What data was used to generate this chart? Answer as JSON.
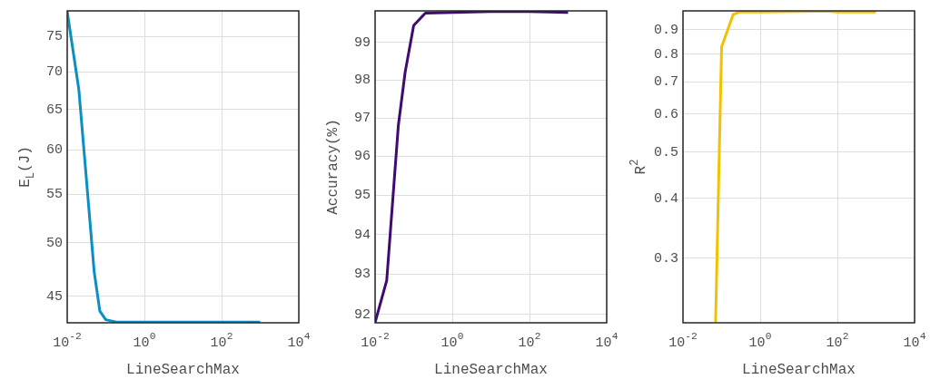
{
  "chart_data": [
    {
      "type": "line",
      "xlabel": "LineSearchMax",
      "ylabel": "E$_{L}$(J)",
      "log": "xy",
      "grid": true,
      "color": "#0a8fc4",
      "x": [
        0.01,
        0.02,
        0.03,
        0.05,
        0.07,
        0.1,
        0.2,
        1,
        10,
        100,
        1000
      ],
      "values": [
        78.8,
        67.6,
        57.7,
        47.2,
        43.7,
        42.96,
        42.75,
        42.75,
        42.75,
        42.75,
        42.75
      ],
      "xlim": [
        0.01,
        10000
      ],
      "xticks": [
        {
          "value": 0.01,
          "label": "10$^{-2}$"
        },
        {
          "value": 1,
          "label": "10$^{0}$"
        },
        {
          "value": 100,
          "label": "10$^{2}$"
        },
        {
          "value": 10000,
          "label": "10$^{4}$"
        }
      ],
      "ylim": [
        42.7,
        78.9
      ],
      "yticks": [
        45,
        50,
        55,
        60,
        65,
        70,
        75
      ]
    },
    {
      "type": "line",
      "xlabel": "LineSearchMax",
      "ylabel": "Accuracy(%)",
      "log": "xy",
      "grid": true,
      "color": "#3f0a72",
      "x": [
        0.01,
        0.02,
        0.04,
        0.06,
        0.1,
        0.2,
        1,
        10,
        100,
        1000
      ],
      "values": [
        91.8,
        92.84,
        96.8,
        98.2,
        99.45,
        99.78,
        99.8,
        99.82,
        99.82,
        99.8
      ],
      "xlim": [
        0.01,
        10000
      ],
      "xticks": [
        {
          "value": 0.01,
          "label": "10$^{-2}$"
        },
        {
          "value": 1,
          "label": "10$^{0}$"
        },
        {
          "value": 100,
          "label": "10$^{2}$"
        },
        {
          "value": 10000,
          "label": "10$^{4}$"
        }
      ],
      "ylim": [
        91.79,
        99.84
      ],
      "yticks": [
        92,
        93,
        94,
        95,
        96,
        97,
        98,
        99
      ]
    },
    {
      "type": "line",
      "xlabel": "LineSearchMax",
      "ylabel": "R$^{2}$",
      "log": "xy",
      "grid": true,
      "color": "#f2c200",
      "x": [
        0.07,
        0.1,
        0.2,
        0.3,
        1,
        10,
        50,
        100,
        1000
      ],
      "values": [
        0.221,
        0.828,
        0.968,
        0.98,
        0.98,
        0.982,
        0.984,
        0.98,
        0.98
      ],
      "xlim": [
        0.01,
        10000
      ],
      "xticks": [
        {
          "value": 0.01,
          "label": "10$^{-2}$"
        },
        {
          "value": 1,
          "label": "10$^{0}$"
        },
        {
          "value": 100,
          "label": "10$^{2}$"
        },
        {
          "value": 10000,
          "label": "10$^{4}$"
        }
      ],
      "ylim": [
        0.22,
        0.985
      ],
      "yticks": [
        0.3,
        0.4,
        0.5,
        0.6,
        0.7,
        0.8,
        0.9
      ]
    }
  ]
}
